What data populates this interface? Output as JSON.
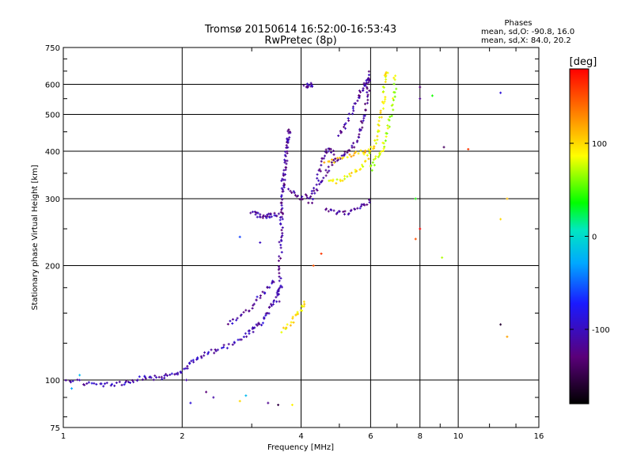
{
  "chart_data": {
    "type": "scatter",
    "title": "Tromsø 20150614 16:52:00-16:53:43",
    "subtitle": "RwPretec (8p)",
    "xlabel": "Frequency [MHz]",
    "ylabel": "Stationary phase Virtual Height [km]",
    "x_scale": "log",
    "y_scale": "log",
    "xlim": [
      1,
      16
    ],
    "ylim": [
      75,
      750
    ],
    "x_ticks": [
      1,
      2,
      4,
      6,
      8,
      10,
      16
    ],
    "x_tick_labels": [
      "1",
      "2",
      "4",
      "6",
      "8",
      "10",
      "16"
    ],
    "y_ticks": [
      75,
      100,
      200,
      300,
      400,
      500,
      600,
      750
    ],
    "y_tick_labels": [
      "75",
      "100",
      "200",
      "300",
      "400",
      "500",
      "600",
      "750"
    ],
    "grid": true,
    "phase_info": {
      "heading": "Phases",
      "line_o": "mean, sd,O: -90.8, 16.0",
      "line_x": "mean, sd,X:  84.0, 20.2"
    },
    "colorbar": {
      "label": "[deg]",
      "range": [
        -180,
        180
      ],
      "tick_values": [
        100,
        0,
        -100
      ],
      "tick_labels": [
        "100",
        "0",
        "-100"
      ]
    },
    "traces": [
      {
        "name": "",
        "phase": -105,
        "points": [
          [
            1.0,
            100
          ],
          [
            1.1,
            99
          ],
          [
            1.2,
            97
          ],
          [
            1.3,
            97
          ],
          [
            1.4,
            98
          ],
          [
            1.5,
            100
          ],
          [
            1.6,
            101
          ],
          [
            1.7,
            101
          ],
          [
            1.8,
            102
          ],
          [
            1.9,
            104
          ],
          [
            2.0,
            106
          ],
          [
            2.1,
            110
          ],
          [
            2.2,
            114
          ],
          [
            2.35,
            118
          ],
          [
            2.5,
            121
          ],
          [
            2.7,
            125
          ],
          [
            2.9,
            131
          ],
          [
            3.0,
            135
          ],
          [
            3.1,
            139
          ],
          [
            3.2,
            143
          ],
          [
            3.3,
            150
          ],
          [
            3.4,
            160
          ],
          [
            3.5,
            170
          ],
          [
            3.6,
            177
          ]
        ]
      },
      {
        "name": "",
        "phase": -110,
        "points": [
          [
            2.6,
            140
          ],
          [
            2.8,
            148
          ],
          [
            3.0,
            155
          ],
          [
            3.15,
            165
          ],
          [
            3.3,
            175
          ],
          [
            3.45,
            185
          ]
        ]
      },
      {
        "name": "",
        "phase": -115,
        "points": [
          [
            3.5,
            160
          ],
          [
            3.52,
            180
          ],
          [
            3.54,
            200
          ],
          [
            3.55,
            225
          ],
          [
            3.56,
            245
          ],
          [
            3.57,
            265
          ],
          [
            3.58,
            280
          ],
          [
            3.59,
            300
          ],
          [
            3.6,
            320
          ],
          [
            3.62,
            340
          ],
          [
            3.64,
            360
          ],
          [
            3.66,
            380
          ],
          [
            3.68,
            400
          ],
          [
            3.7,
            420
          ],
          [
            3.72,
            440
          ],
          [
            3.73,
            460
          ]
        ]
      },
      {
        "name": "",
        "phase": -112,
        "points": [
          [
            3.0,
            275
          ],
          [
            3.1,
            272
          ],
          [
            3.2,
            270
          ],
          [
            3.3,
            270
          ],
          [
            3.4,
            272
          ],
          [
            3.5,
            275
          ]
        ]
      },
      {
        "name": "",
        "phase": -120,
        "points": [
          [
            3.6,
            330
          ],
          [
            3.8,
            310
          ],
          [
            4.0,
            300
          ],
          [
            4.2,
            305
          ],
          [
            4.4,
            320
          ],
          [
            4.6,
            345
          ],
          [
            4.8,
            370
          ],
          [
            5.0,
            385
          ],
          [
            5.2,
            395
          ],
          [
            5.4,
            410
          ],
          [
            5.6,
            440
          ],
          [
            5.7,
            470
          ],
          [
            5.8,
            510
          ],
          [
            5.9,
            560
          ],
          [
            5.95,
            610
          ],
          [
            6.0,
            650
          ]
        ]
      },
      {
        "name": "",
        "phase": -118,
        "points": [
          [
            4.2,
            290
          ],
          [
            4.4,
            330
          ],
          [
            4.5,
            370
          ],
          [
            4.6,
            395
          ],
          [
            4.7,
            405
          ],
          [
            4.9,
            395
          ]
        ]
      },
      {
        "name": "",
        "phase": -115,
        "points": [
          [
            4.6,
            280
          ],
          [
            4.9,
            278
          ],
          [
            5.2,
            275
          ],
          [
            5.5,
            280
          ],
          [
            5.8,
            290
          ],
          [
            6.0,
            300
          ]
        ]
      },
      {
        "name": "",
        "phase": -112,
        "points": [
          [
            5.0,
            440
          ],
          [
            5.2,
            470
          ],
          [
            5.4,
            510
          ],
          [
            5.6,
            550
          ],
          [
            5.7,
            580
          ],
          [
            5.8,
            600
          ],
          [
            5.9,
            630
          ]
        ]
      },
      {
        "name": "",
        "phase": -110,
        "points": [
          [
            4.1,
            590
          ],
          [
            4.2,
            600
          ],
          [
            4.3,
            600
          ]
        ]
      },
      {
        "name": "",
        "phase": 90,
        "points": [
          [
            4.7,
            330
          ],
          [
            5.0,
            335
          ],
          [
            5.3,
            345
          ],
          [
            5.6,
            360
          ],
          [
            5.9,
            385
          ],
          [
            6.1,
            410
          ],
          [
            6.25,
            440
          ],
          [
            6.35,
            480
          ],
          [
            6.45,
            530
          ],
          [
            6.5,
            580
          ],
          [
            6.55,
            630
          ],
          [
            6.6,
            650
          ]
        ]
      },
      {
        "name": "",
        "phase": 75,
        "points": [
          [
            6.0,
            360
          ],
          [
            6.2,
            380
          ],
          [
            6.4,
            400
          ],
          [
            6.55,
            430
          ],
          [
            6.7,
            470
          ],
          [
            6.8,
            520
          ],
          [
            6.9,
            580
          ],
          [
            6.95,
            640
          ]
        ]
      },
      {
        "name": "",
        "phase": 95,
        "points": [
          [
            3.6,
            135
          ],
          [
            3.75,
            140
          ],
          [
            3.9,
            148
          ],
          [
            4.0,
            155
          ],
          [
            4.1,
            162
          ]
        ]
      },
      {
        "name": "",
        "phase": 105,
        "points": [
          [
            4.6,
            375
          ],
          [
            5.0,
            380
          ],
          [
            5.4,
            390
          ],
          [
            5.8,
            400
          ],
          [
            6.0,
            410
          ]
        ]
      }
    ],
    "scatter_points": [
      [
        12.8,
        570,
        -90
      ],
      [
        8.6,
        560,
        40
      ],
      [
        8.0,
        590,
        -130
      ],
      [
        8.0,
        550,
        -120
      ],
      [
        9.2,
        410,
        -140
      ],
      [
        10.6,
        405,
        160
      ],
      [
        13.3,
        300,
        110
      ],
      [
        12.8,
        265,
        100
      ],
      [
        8.0,
        250,
        180
      ],
      [
        7.8,
        235,
        150
      ],
      [
        9.1,
        210,
        70
      ],
      [
        12.8,
        140,
        -160
      ],
      [
        13.3,
        130,
        120
      ],
      [
        7.8,
        300,
        40
      ],
      [
        2.8,
        238,
        -60
      ],
      [
        3.15,
        230,
        -100
      ],
      [
        4.5,
        215,
        160
      ],
      [
        4.3,
        200,
        150
      ],
      [
        2.3,
        93,
        -130
      ],
      [
        2.4,
        90,
        -110
      ],
      [
        2.8,
        88,
        100
      ],
      [
        2.9,
        91,
        -20
      ],
      [
        3.3,
        87,
        -120
      ],
      [
        3.5,
        86,
        -150
      ],
      [
        3.8,
        86,
        90
      ],
      [
        2.1,
        87,
        -90
      ],
      [
        2.05,
        100,
        -110
      ],
      [
        1.1,
        103,
        -20
      ],
      [
        1.05,
        95,
        -30
      ]
    ]
  }
}
